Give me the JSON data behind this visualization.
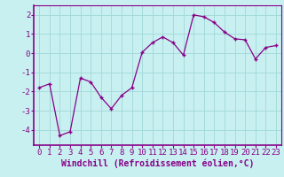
{
  "x": [
    0,
    1,
    2,
    3,
    4,
    5,
    6,
    7,
    8,
    9,
    10,
    11,
    12,
    13,
    14,
    15,
    16,
    17,
    18,
    19,
    20,
    21,
    22,
    23
  ],
  "y": [
    -1.8,
    -1.6,
    -4.3,
    -4.1,
    -1.3,
    -1.5,
    -2.3,
    -2.9,
    -2.2,
    -1.8,
    0.05,
    0.55,
    0.85,
    0.55,
    -0.1,
    2.0,
    1.9,
    1.6,
    1.1,
    0.75,
    0.7,
    -0.3,
    0.3,
    0.4
  ],
  "line_color": "#880088",
  "marker": "+",
  "marker_color": "#880088",
  "bg_color": "#c8f0f0",
  "grid_color": "#a0d8d8",
  "xlabel": "Windchill (Refroidissement éolien,°C)",
  "xlabel_color": "#880088",
  "yticks": [
    -4,
    -3,
    -2,
    -1,
    0,
    1,
    2
  ],
  "xticks": [
    0,
    1,
    2,
    3,
    4,
    5,
    6,
    7,
    8,
    9,
    10,
    11,
    12,
    13,
    14,
    15,
    16,
    17,
    18,
    19,
    20,
    21,
    22,
    23
  ],
  "ylim": [
    -4.8,
    2.5
  ],
  "xlim": [
    -0.5,
    23.5
  ],
  "tick_color": "#880088",
  "tick_label_fontsize": 6.5,
  "xlabel_fontsize": 7.0,
  "linewidth": 0.9,
  "markersize": 3.5,
  "markeredgewidth": 1.0
}
